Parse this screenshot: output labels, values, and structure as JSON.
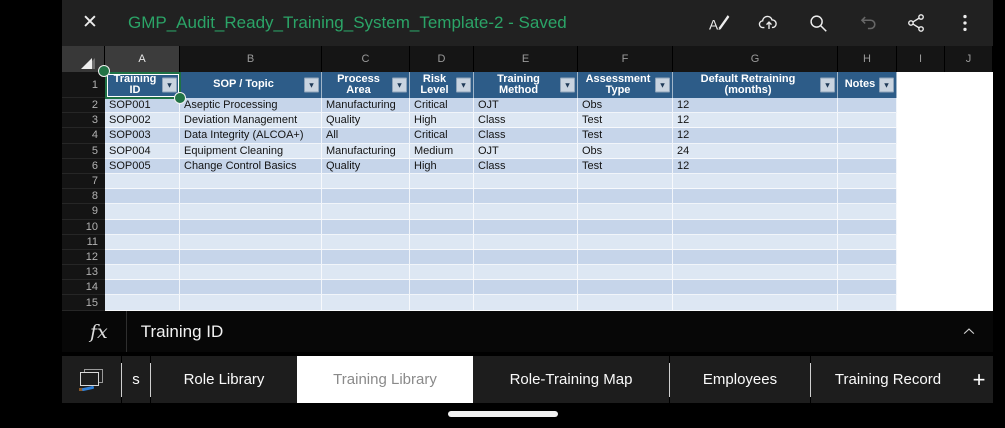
{
  "titlebar": {
    "close_glyph": "✕",
    "title": "GMP_Audit_Ready_Training_System_Template-2 - Saved",
    "icons": [
      "edit-pen-icon",
      "cloud-upload-icon",
      "search-icon",
      "undo-icon",
      "share-icon",
      "overflow-menu-icon"
    ]
  },
  "grid": {
    "column_letters": [
      "A",
      "B",
      "C",
      "D",
      "E",
      "F",
      "G",
      "H",
      "I",
      "J"
    ],
    "selected_column": "A",
    "selected_cell": "A1",
    "row_count": 15
  },
  "table": {
    "columns": [
      "Training ID",
      "SOP / Topic",
      "Process Area",
      "Risk Level",
      "Training Method",
      "Assessment Type",
      "Default Retraining (months)",
      "Notes"
    ],
    "rows": [
      [
        "SOP001",
        "Aseptic Processing",
        "Manufacturing",
        "Critical",
        "OJT",
        "Obs",
        "12",
        ""
      ],
      [
        "SOP002",
        "Deviation Management",
        "Quality",
        "High",
        "Class",
        "Test",
        "12",
        ""
      ],
      [
        "SOP003",
        "Data Integrity (ALCOA+)",
        "All",
        "Critical",
        "Class",
        "Test",
        "12",
        ""
      ],
      [
        "SOP004",
        "Equipment Cleaning",
        "Manufacturing",
        "Medium",
        "OJT",
        "Obs",
        "24",
        ""
      ],
      [
        "SOP005",
        "Change Control Basics",
        "Quality",
        "High",
        "Class",
        "Test",
        "12",
        ""
      ]
    ],
    "filter_glyph": "▾"
  },
  "formula_bar": {
    "fx_label": "fx",
    "value": "Training ID"
  },
  "sheet_tabs": {
    "items": [
      {
        "label": "s",
        "active": false
      },
      {
        "label": "Role Library",
        "active": false
      },
      {
        "label": "Training Library",
        "active": true
      },
      {
        "label": "Role-Training Map",
        "active": false
      },
      {
        "label": "Employees",
        "active": false
      },
      {
        "label": "Training Record",
        "active": false
      }
    ],
    "add_label": "+"
  },
  "colors": {
    "accent_green": "#2ba467",
    "selection_green": "#217346",
    "table_header_fill": "#2d5c88",
    "band_dark": "#c6d5ea",
    "band_light": "#dde7f3",
    "active_tab_bg": "#ffffff",
    "tab_bg": "#1d1d1d",
    "titlebar_bg": "#212121"
  }
}
